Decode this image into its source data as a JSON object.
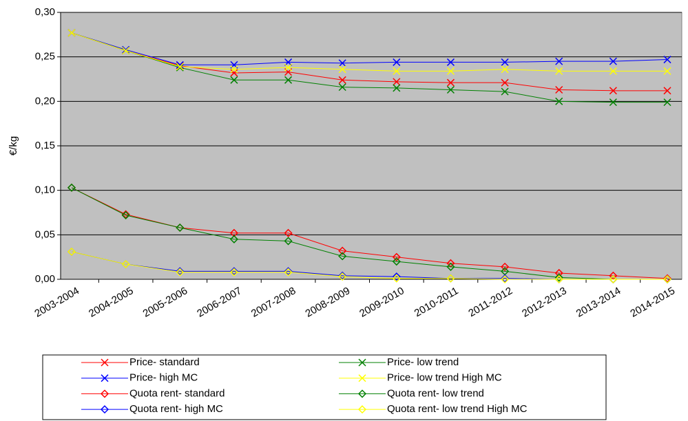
{
  "chart_data": {
    "type": "line",
    "y_label": "€/kg",
    "categories": [
      "2003-2004",
      "2004-2005",
      "2005-2006",
      "2006-2007",
      "2007-2008",
      "2008-2009",
      "2009-2010",
      "2010-2011",
      "2011-2012",
      "2012-2013",
      "2013-2014",
      "2014-2015"
    ],
    "ylim": [
      0,
      0.3
    ],
    "yticks": [
      {
        "value": 0,
        "label": "0,00"
      },
      {
        "value": 0.05,
        "label": "0,05"
      },
      {
        "value": 0.1,
        "label": "0,10"
      },
      {
        "value": 0.15,
        "label": "0,15"
      },
      {
        "value": 0.2,
        "label": "0,20"
      },
      {
        "value": 0.25,
        "label": "0,25"
      },
      {
        "value": 0.3,
        "label": "0,30"
      }
    ],
    "grid": true,
    "legend": "bottom",
    "series": [
      {
        "name": "Price- standard",
        "color": "#ff0000",
        "marker": "x",
        "values": [
          0.277,
          0.257,
          0.24,
          0.232,
          0.233,
          0.224,
          0.222,
          0.221,
          0.221,
          0.213,
          0.212,
          0.212
        ]
      },
      {
        "name": "Price- low trend",
        "color": "#008000",
        "marker": "x",
        "values": [
          0.277,
          0.257,
          0.238,
          0.224,
          0.224,
          0.216,
          0.215,
          0.213,
          0.211,
          0.2,
          0.199,
          0.199
        ]
      },
      {
        "name": "Price- high MC",
        "color": "#0000ff",
        "marker": "x",
        "values": [
          0.277,
          0.258,
          0.241,
          0.241,
          0.244,
          0.243,
          0.244,
          0.244,
          0.244,
          0.245,
          0.245,
          0.247
        ]
      },
      {
        "name": "Price- low trend High MC",
        "color": "#ffff00",
        "marker": "x",
        "values": [
          0.277,
          0.257,
          0.239,
          0.236,
          0.238,
          0.236,
          0.234,
          0.234,
          0.236,
          0.234,
          0.234,
          0.234
        ]
      },
      {
        "name": "Quota rent- standard",
        "color": "#ff0000",
        "marker": "diamond",
        "values": [
          0.103,
          0.073,
          0.058,
          0.052,
          0.052,
          0.032,
          0.025,
          0.018,
          0.014,
          0.007,
          0.004,
          0.001
        ]
      },
      {
        "name": "Quota rent- low trend",
        "color": "#008000",
        "marker": "diamond",
        "values": [
          0.103,
          0.072,
          0.058,
          0.045,
          0.043,
          0.026,
          0.02,
          0.014,
          0.009,
          0.002,
          0.0,
          0.0
        ]
      },
      {
        "name": "Quota rent- high MC",
        "color": "#0000ff",
        "marker": "diamond",
        "values": [
          0.031,
          0.017,
          0.009,
          0.009,
          0.009,
          0.004,
          0.003,
          0.001,
          0.001,
          0.0,
          0.0,
          0.0
        ]
      },
      {
        "name": "Quota rent- low trend High MC",
        "color": "#ffff00",
        "marker": "diamond",
        "values": [
          0.031,
          0.017,
          0.008,
          0.008,
          0.008,
          0.003,
          0.001,
          0.001,
          0.0,
          0.0,
          0.0,
          0.0
        ]
      }
    ]
  }
}
